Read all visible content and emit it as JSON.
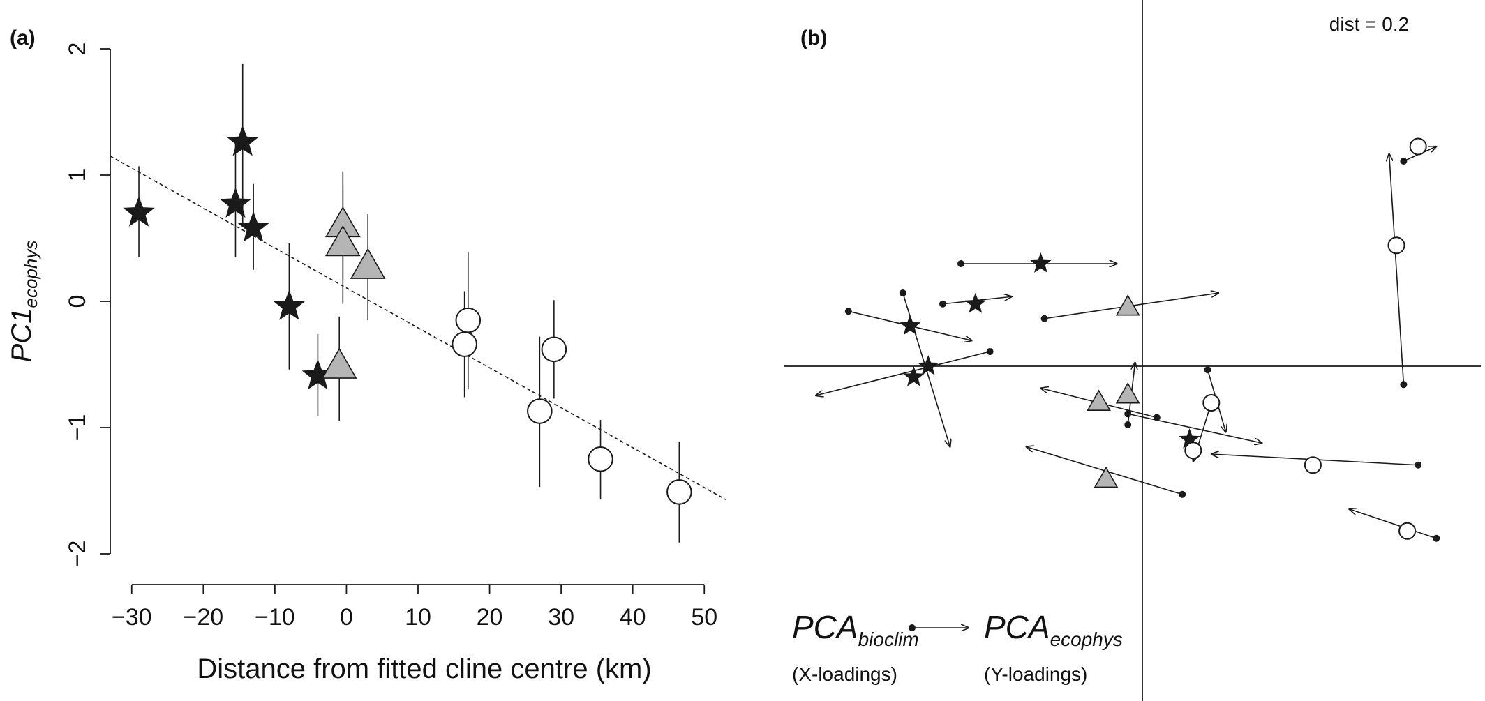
{
  "colors": {
    "ink": "#1a1a1a",
    "grey_fill": "#b5b5b5",
    "open_fill": "#ffffff"
  },
  "icons": {
    "star": "filled-star-marker",
    "triangle": "grey-triangle-marker",
    "circle": "open-circle-marker"
  },
  "chart_data": [
    {
      "panel_label": "(a)",
      "type": "scatter",
      "xlabel": "Distance from fitted cline centre (km)",
      "ylabel_main": "PC1",
      "ylabel_sub": "ecophys",
      "xlim": [
        -33,
        53
      ],
      "ylim": [
        -2,
        2
      ],
      "xticks": [
        -30,
        -20,
        -10,
        0,
        10,
        20,
        30,
        40,
        50
      ],
      "xtick_labels": [
        "−30",
        "−20",
        "−10",
        "0",
        "10",
        "20",
        "30",
        "40",
        "50"
      ],
      "yticks": [
        2,
        1,
        0,
        -1,
        -2
      ],
      "ytick_labels": [
        "2",
        "1",
        "0",
        "−1",
        "−2"
      ],
      "grid": false,
      "fit_line": {
        "style": "dashed",
        "x": [
          -33,
          53
        ],
        "y": [
          1.15,
          -1.57
        ]
      },
      "points": [
        {
          "marker": "star",
          "x": -29.0,
          "y": 0.7,
          "lo": 0.35,
          "hi": 1.07
        },
        {
          "marker": "star",
          "x": -14.5,
          "y": 1.26,
          "lo": 0.6,
          "hi": 1.88
        },
        {
          "marker": "star",
          "x": -15.5,
          "y": 0.77,
          "lo": 0.35,
          "hi": 1.26
        },
        {
          "marker": "star",
          "x": -13.0,
          "y": 0.58,
          "lo": 0.25,
          "hi": 0.93
        },
        {
          "marker": "star",
          "x": -8.0,
          "y": -0.04,
          "lo": -0.54,
          "hi": 0.46
        },
        {
          "marker": "star",
          "x": -4.0,
          "y": -0.59,
          "lo": -0.91,
          "hi": -0.26
        },
        {
          "marker": "triangle",
          "x": -0.5,
          "y": 0.6,
          "lo": 0.17,
          "hi": 1.03
        },
        {
          "marker": "triangle",
          "x": -0.5,
          "y": 0.45,
          "lo": -0.02,
          "hi": 0.92
        },
        {
          "marker": "triangle",
          "x": 3.0,
          "y": 0.27,
          "lo": -0.15,
          "hi": 0.69
        },
        {
          "marker": "triangle",
          "x": -1.0,
          "y": -0.52,
          "lo": -0.95,
          "hi": -0.12
        },
        {
          "marker": "circle",
          "x": 17.0,
          "y": -0.15,
          "lo": -0.69,
          "hi": 0.39
        },
        {
          "marker": "circle",
          "x": 16.5,
          "y": -0.34,
          "lo": -0.76,
          "hi": 0.08
        },
        {
          "marker": "circle",
          "x": 29.0,
          "y": -0.38,
          "lo": -0.77,
          "hi": 0.01
        },
        {
          "marker": "circle",
          "x": 27.0,
          "y": -0.87,
          "lo": -1.47,
          "hi": -0.28
        },
        {
          "marker": "circle",
          "x": 35.5,
          "y": -1.25,
          "lo": -1.57,
          "hi": -0.94
        },
        {
          "marker": "circle",
          "x": 46.5,
          "y": -1.51,
          "lo": -1.91,
          "hi": -1.11
        }
      ]
    },
    {
      "panel_label": "(b)",
      "type": "scatter",
      "scale_note": "dist = 0.2",
      "xlim": [
        -1.0,
        1.0
      ],
      "ylim": [
        -1.0,
        1.0
      ],
      "axes_through_origin": true,
      "grid": false,
      "legend": {
        "from_main": "PCA",
        "from_sub": "bioclim",
        "from_note": "(X-loadings)",
        "to_main": "PCA",
        "to_sub": "ecophys",
        "to_note": "(Y-loadings)"
      },
      "vectors": [
        {
          "from": [
            -0.5,
            0.28
          ],
          "to": [
            -0.07,
            0.28
          ],
          "marker": "star"
        },
        {
          "from": [
            -0.55,
            0.17
          ],
          "to": [
            -0.36,
            0.19
          ],
          "marker": "none"
        },
        {
          "from": [
            -0.81,
            0.15
          ],
          "to": [
            -0.47,
            0.07
          ],
          "marker": "none"
        },
        {
          "from": [
            -0.66,
            0.2
          ],
          "to": [
            -0.53,
            -0.22
          ],
          "marker": "none"
        },
        {
          "from": [
            -0.42,
            0.04
          ],
          "to": [
            -0.9,
            -0.08
          ],
          "marker": "none"
        },
        {
          "from": [
            -0.27,
            0.13
          ],
          "to": [
            0.21,
            0.2
          ],
          "marker": "none"
        },
        {
          "from": [
            0.04,
            -0.14
          ],
          "to": [
            -0.28,
            -0.06
          ],
          "marker": "none"
        },
        {
          "from": [
            -0.04,
            -0.16
          ],
          "to": [
            -0.02,
            0.01
          ],
          "marker": "none"
        },
        {
          "from": [
            -0.04,
            -0.13
          ],
          "to": [
            0.33,
            -0.21
          ],
          "marker": "none"
        },
        {
          "from": [
            0.11,
            -0.35
          ],
          "to": [
            -0.32,
            -0.22
          ],
          "marker": "none"
        },
        {
          "from": [
            0.18,
            -0.01
          ],
          "to": [
            0.23,
            -0.18
          ],
          "marker": "none"
        },
        {
          "from": [
            0.19,
            -0.1
          ],
          "to": [
            0.14,
            -0.26
          ],
          "marker": "none"
        },
        {
          "from": [
            0.76,
            -0.27
          ],
          "to": [
            0.19,
            -0.24
          ],
          "marker": "none"
        },
        {
          "from": [
            0.72,
            -0.05
          ],
          "to": [
            0.68,
            0.58
          ],
          "marker": "none"
        },
        {
          "from": [
            0.72,
            0.56
          ],
          "to": [
            0.81,
            0.6
          ],
          "marker": "none"
        },
        {
          "from": [
            0.81,
            -0.47
          ],
          "to": [
            0.57,
            -0.39
          ],
          "marker": "none"
        }
      ],
      "points": [
        {
          "marker": "star",
          "x": -0.28,
          "y": 0.28
        },
        {
          "marker": "star",
          "x": -0.46,
          "y": 0.17
        },
        {
          "marker": "star",
          "x": -0.64,
          "y": 0.11
        },
        {
          "marker": "star",
          "x": -0.59,
          "y": 0.0
        },
        {
          "marker": "star",
          "x": -0.63,
          "y": -0.03
        },
        {
          "marker": "star",
          "x": 0.13,
          "y": -0.2
        },
        {
          "marker": "triangle",
          "x": -0.04,
          "y": 0.16
        },
        {
          "marker": "triangle",
          "x": -0.12,
          "y": -0.1
        },
        {
          "marker": "triangle",
          "x": -0.04,
          "y": -0.08
        },
        {
          "marker": "triangle",
          "x": -0.1,
          "y": -0.31
        },
        {
          "marker": "circle",
          "x": 0.7,
          "y": 0.33
        },
        {
          "marker": "circle",
          "x": 0.76,
          "y": 0.6
        },
        {
          "marker": "circle",
          "x": 0.19,
          "y": -0.1
        },
        {
          "marker": "circle",
          "x": 0.14,
          "y": -0.23
        },
        {
          "marker": "circle",
          "x": 0.47,
          "y": -0.27
        },
        {
          "marker": "circle",
          "x": 0.73,
          "y": -0.45
        }
      ]
    }
  ]
}
